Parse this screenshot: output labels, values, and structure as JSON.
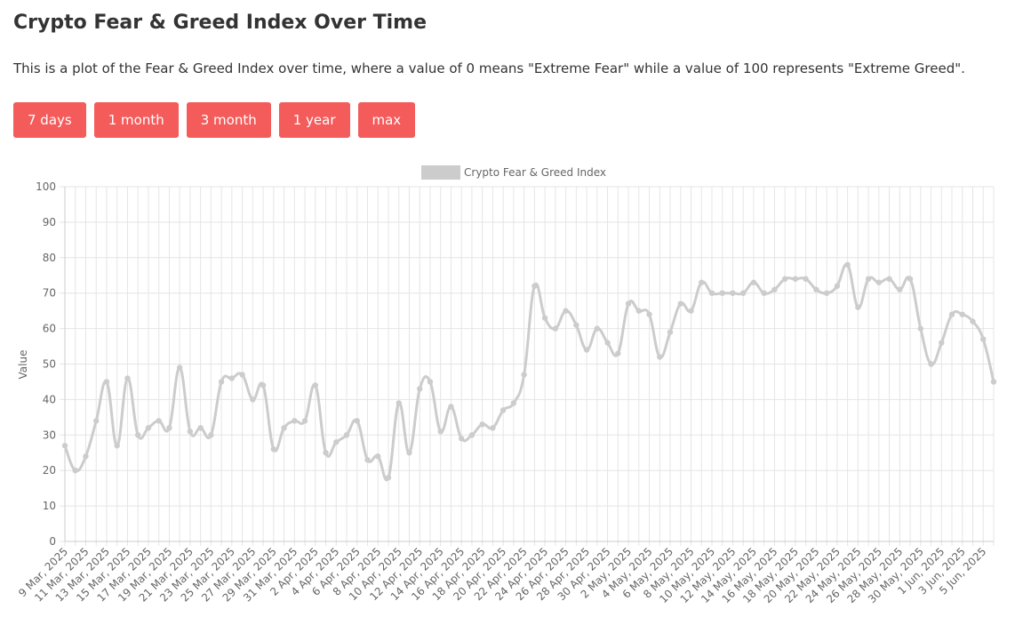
{
  "page": {
    "title": "Crypto Fear & Greed Index Over Time",
    "description": "This is a plot of the Fear & Greed Index over time, where a value of 0 means \"Extreme Fear\" while a value of 100 represents \"Extreme Greed\"."
  },
  "buttons": [
    "7 days",
    "1 month",
    "3 month",
    "1 year",
    "max"
  ],
  "colors": {
    "button": "#f45b5b",
    "line": "#cccccc",
    "grid": "#e5e5e5"
  },
  "chart_data": {
    "type": "line",
    "title": "",
    "xlabel": "",
    "ylabel": "Value",
    "ylim": [
      0,
      100
    ],
    "yticks": [
      0,
      10,
      20,
      30,
      40,
      50,
      60,
      70,
      80,
      90,
      100
    ],
    "grid": true,
    "legend_position": "top-center",
    "series": [
      {
        "name": "Crypto Fear & Greed Index",
        "x": [
          "9 Mar, 2025",
          "10 Mar, 2025",
          "11 Mar, 2025",
          "12 Mar, 2025",
          "13 Mar, 2025",
          "14 Mar, 2025",
          "15 Mar, 2025",
          "16 Mar, 2025",
          "17 Mar, 2025",
          "18 Mar, 2025",
          "19 Mar, 2025",
          "20 Mar, 2025",
          "21 Mar, 2025",
          "22 Mar, 2025",
          "23 Mar, 2025",
          "24 Mar, 2025",
          "25 Mar, 2025",
          "26 Mar, 2025",
          "27 Mar, 2025",
          "28 Mar, 2025",
          "29 Mar, 2025",
          "30 Mar, 2025",
          "31 Mar, 2025",
          "1 Apr, 2025",
          "2 Apr, 2025",
          "3 Apr, 2025",
          "4 Apr, 2025",
          "5 Apr, 2025",
          "6 Apr, 2025",
          "7 Apr, 2025",
          "8 Apr, 2025",
          "9 Apr, 2025",
          "10 Apr, 2025",
          "11 Apr, 2025",
          "12 Apr, 2025",
          "13 Apr, 2025",
          "14 Apr, 2025",
          "15 Apr, 2025",
          "16 Apr, 2025",
          "17 Apr, 2025",
          "18 Apr, 2025",
          "19 Apr, 2025",
          "20 Apr, 2025",
          "21 Apr, 2025",
          "22 Apr, 2025",
          "23 Apr, 2025",
          "24 Apr, 2025",
          "25 Apr, 2025",
          "26 Apr, 2025",
          "27 Apr, 2025",
          "28 Apr, 2025",
          "29 Apr, 2025",
          "30 Apr, 2025",
          "1 May, 2025",
          "2 May, 2025",
          "3 May, 2025",
          "4 May, 2025",
          "5 May, 2025",
          "6 May, 2025",
          "7 May, 2025",
          "8 May, 2025",
          "9 May, 2025",
          "10 May, 2025",
          "11 May, 2025",
          "12 May, 2025",
          "13 May, 2025",
          "14 May, 2025",
          "15 May, 2025",
          "16 May, 2025",
          "17 May, 2025",
          "18 May, 2025",
          "19 May, 2025",
          "20 May, 2025",
          "21 May, 2025",
          "22 May, 2025",
          "23 May, 2025",
          "24 May, 2025",
          "25 May, 2025",
          "26 May, 2025",
          "27 May, 2025",
          "28 May, 2025",
          "29 May, 2025",
          "30 May, 2025",
          "31 May, 2025",
          "1 Jun, 2025",
          "2 Jun, 2025",
          "3 Jun, 2025",
          "4 Jun, 2025",
          "5 Jun, 2025",
          "6 Jun, 2025"
        ],
        "values": [
          27,
          20,
          24,
          34,
          45,
          27,
          46,
          30,
          32,
          34,
          32,
          49,
          31,
          32,
          30,
          45,
          46,
          47,
          40,
          44,
          26,
          32,
          34,
          34,
          44,
          25,
          28,
          30,
          34,
          23,
          24,
          18,
          39,
          25,
          43,
          45,
          31,
          38,
          29,
          30,
          33,
          32,
          37,
          39,
          47,
          72,
          63,
          60,
          65,
          61,
          54,
          60,
          56,
          53,
          67,
          65,
          64,
          52,
          59,
          67,
          65,
          73,
          70,
          70,
          70,
          70,
          73,
          70,
          71,
          74,
          74,
          74,
          71,
          70,
          72,
          78,
          66,
          74,
          73,
          74,
          71,
          74,
          60,
          50,
          56,
          64,
          64,
          62,
          57,
          45
        ]
      }
    ],
    "tick_labels": [
      "9 Mar, 2025",
      "11 Mar, 2025",
      "13 Mar, 2025",
      "15 Mar, 2025",
      "17 Mar, 2025",
      "19 Mar, 2025",
      "21 Mar, 2025",
      "23 Mar, 2025",
      "25 Mar, 2025",
      "27 Mar, 2025",
      "29 Mar, 2025",
      "31 Mar, 2025",
      "2 Apr, 2025",
      "4 Apr, 2025",
      "6 Apr, 2025",
      "8 Apr, 2025",
      "10 Apr, 2025",
      "12 Apr, 2025",
      "14 Apr, 2025",
      "16 Apr, 2025",
      "18 Apr, 2025",
      "20 Apr, 2025",
      "22 Apr, 2025",
      "24 Apr, 2025",
      "26 Apr, 2025",
      "28 Apr, 2025",
      "30 Apr, 2025",
      "2 May, 2025",
      "4 May, 2025",
      "6 May, 2025",
      "8 May, 2025",
      "10 May, 2025",
      "12 May, 2025",
      "14 May, 2025",
      "16 May, 2025",
      "18 May, 2025",
      "20 May, 2025",
      "22 May, 2025",
      "24 May, 2025",
      "26 May, 2025",
      "28 May, 2025",
      "30 May, 2025",
      "1 Jun, 2025",
      "3 Jun, 2025",
      "5 Jun, 2025"
    ]
  }
}
